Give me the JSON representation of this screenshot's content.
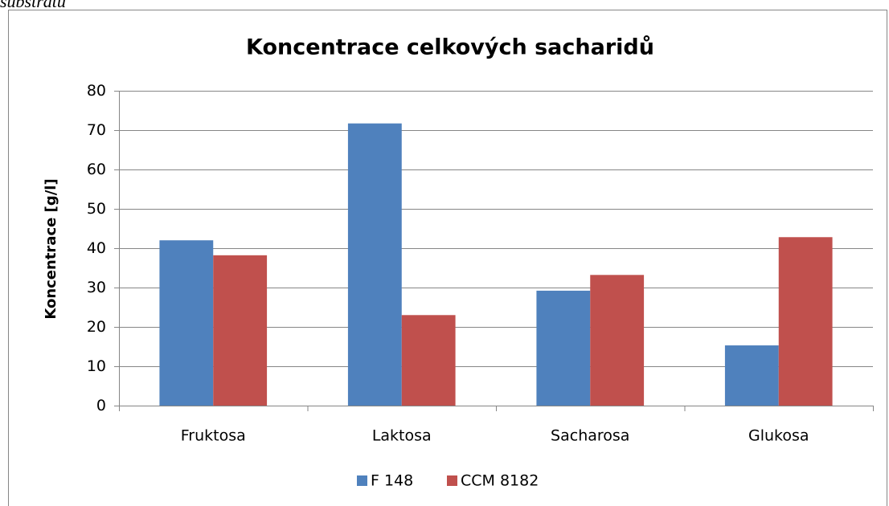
{
  "caption": "substrátu",
  "chart_data": {
    "type": "bar",
    "title": "Koncentrace celkových sacharidů",
    "y_label": "Koncentrace [g/l]",
    "categories": [
      "Fruktosa",
      "Laktosa",
      "Sacharosa",
      "Glukosa"
    ],
    "series": [
      {
        "name": "F 148",
        "color": "#4f81bd",
        "values": [
          42,
          71.7,
          29.2,
          15.3
        ]
      },
      {
        "name": "CCM 8182",
        "color": "#c0504d",
        "values": [
          38.2,
          23,
          33.2,
          42.8
        ]
      }
    ],
    "ylim": [
      0,
      80
    ],
    "yticks": [
      0,
      10,
      20,
      30,
      40,
      50,
      60,
      70,
      80
    ],
    "grid": true,
    "legend": "bottom"
  }
}
